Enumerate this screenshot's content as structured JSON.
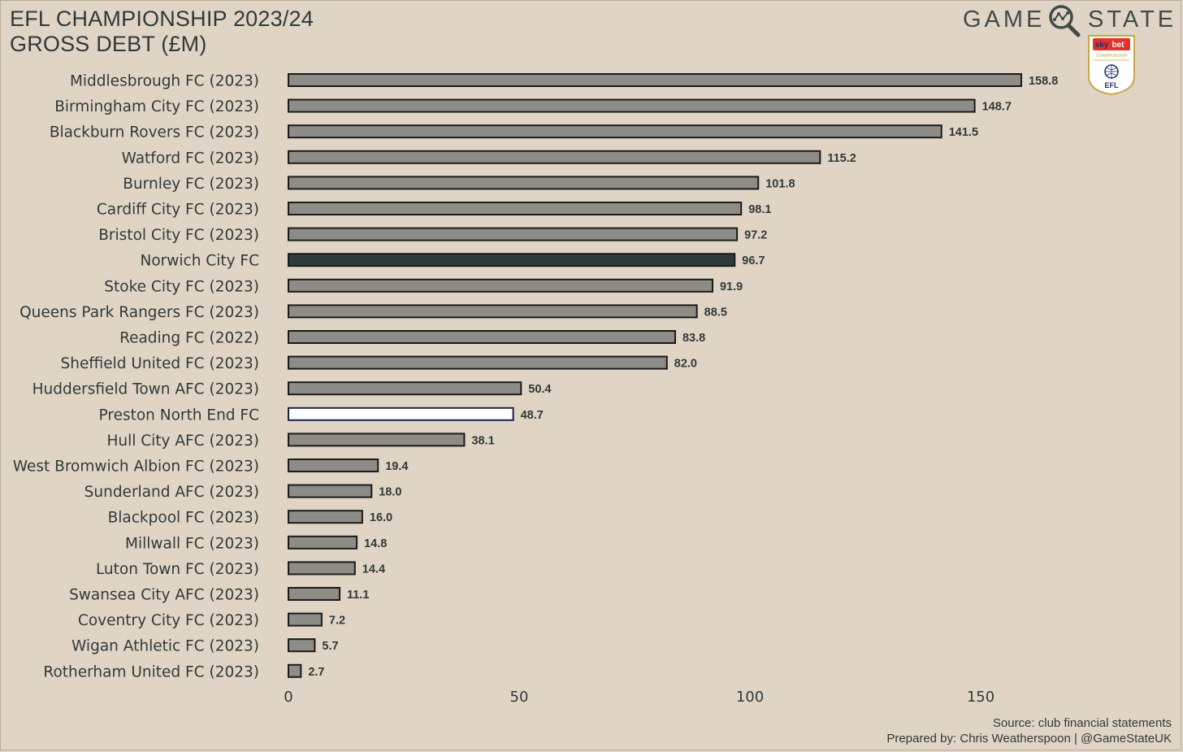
{
  "header": {
    "title_line1": "EFL CHAMPIONSHIP 2023/24",
    "title_line2": "GROSS DEBT (£M)"
  },
  "brand": {
    "word_left": "GAME",
    "word_right": "STATE",
    "icon": "magnifier-icon",
    "badge": {
      "sky": "sky",
      "bet": "bet",
      "championship": "CHAMPIONSHIP",
      "efl": "EFL"
    }
  },
  "footer": {
    "source": "Source: club financial statements",
    "credit": "Prepared by: Chris Weatherspoon | @GameStateUK"
  },
  "colors": {
    "background": "#e0d5c5",
    "bar_default": "#8e8c86",
    "bar_norwich": "#2e3b3c",
    "bar_preston": "#ffffff",
    "bar_outline": "#1a1a1a",
    "preston_outline": "#1a2448"
  },
  "chart_data": {
    "type": "bar",
    "orientation": "horizontal",
    "title": "EFL CHAMPIONSHIP 2023/24 GROSS DEBT (£M)",
    "categories": [
      "Middlesbrough FC (2023)",
      "Birmingham City FC (2023)",
      "Blackburn Rovers FC (2023)",
      "Watford FC (2023)",
      "Burnley FC (2023)",
      "Cardiff City FC (2023)",
      "Bristol City FC (2023)",
      "Norwich City FC",
      "Stoke City FC (2023)",
      "Queens Park Rangers FC (2023)",
      "Reading FC (2022)",
      "Sheffield United FC (2023)",
      "Huddersfield Town AFC (2023)",
      "Preston North End FC",
      "Hull City AFC (2023)",
      "West Bromwich Albion FC (2023)",
      "Sunderland AFC (2023)",
      "Blackpool FC (2023)",
      "Millwall FC (2023)",
      "Luton Town FC (2023)",
      "Swansea City AFC (2023)",
      "Coventry City FC (2023)",
      "Wigan Athletic FC (2023)",
      "Rotherham United FC (2023)"
    ],
    "values": [
      158.8,
      148.7,
      141.5,
      115.2,
      101.8,
      98.1,
      97.2,
      96.7,
      91.9,
      88.5,
      83.8,
      82.0,
      50.4,
      48.7,
      38.1,
      19.4,
      18.0,
      16.0,
      14.8,
      14.4,
      11.1,
      7.2,
      5.7,
      2.7
    ],
    "value_labels": [
      "158.8",
      "148.7",
      "141.5",
      "115.2",
      "101.8",
      "98.1",
      "97.2",
      "96.7",
      "91.9",
      "88.5",
      "83.8",
      "82.0",
      "50.4",
      "48.7",
      "38.1",
      "19.4",
      "18.0",
      "16.0",
      "14.8",
      "14.4",
      "11.1",
      "7.2",
      "5.7",
      "2.7"
    ],
    "highlight": {
      "Norwich City FC": "#2e3b3c",
      "Preston North End FC": "#ffffff"
    },
    "xticks": [
      0,
      50,
      100,
      150
    ],
    "xtick_labels": [
      "0",
      "50",
      "100",
      "150"
    ],
    "xlim": [
      0,
      180
    ],
    "grid": false,
    "legend": "none"
  }
}
